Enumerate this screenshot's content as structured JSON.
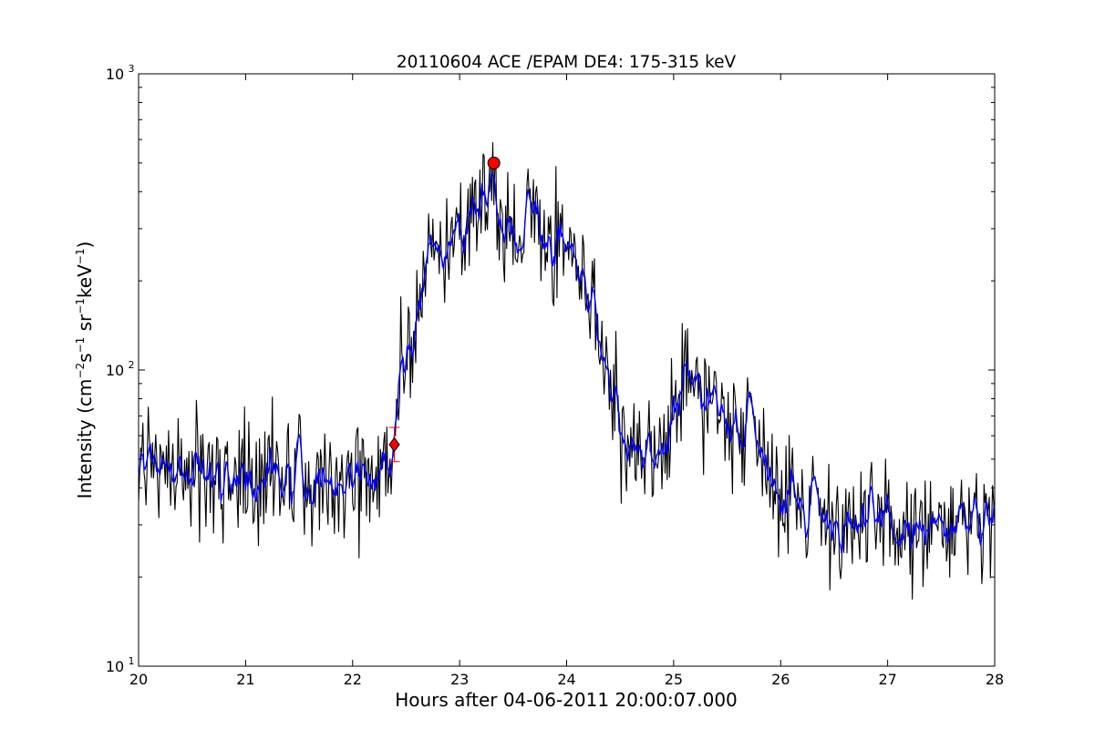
{
  "chart_data": {
    "type": "line",
    "title": "20110604 ACE /EPAM DE4: 175-315 keV",
    "xlabel": "Hours after 04-06-2011 20:00:07.000",
    "ylabel": {
      "prefix": "Intensity (cm",
      "sup1": "−2",
      "mid1": "s",
      "sup2": "−1",
      "mid2": "sr",
      "sup3": "−1",
      "mid3": "keV",
      "sup4": "−1",
      "suffix": ")"
    },
    "xlim": [
      20,
      28
    ],
    "ylim": [
      10,
      1000
    ],
    "y_scale": "log",
    "x_ticks": [
      "20",
      "21",
      "22",
      "23",
      "24",
      "25",
      "26",
      "27",
      "28"
    ],
    "y_ticks": [
      {
        "value": 10,
        "base": "10",
        "exp": "1"
      },
      {
        "value": 100,
        "base": "10",
        "exp": "2"
      },
      {
        "value": 1000,
        "base": "10",
        "exp": "3"
      }
    ],
    "series": [
      {
        "color": "#000000",
        "style": "raw",
        "profile": [
          [
            20.0,
            48
          ],
          [
            20.5,
            46
          ],
          [
            21.0,
            43
          ],
          [
            21.5,
            44
          ],
          [
            22.0,
            43
          ],
          [
            22.3,
            44
          ],
          [
            22.4,
            58
          ],
          [
            22.45,
            95
          ],
          [
            22.55,
            130
          ],
          [
            22.65,
            210
          ],
          [
            22.8,
            265
          ],
          [
            22.9,
            245
          ],
          [
            23.0,
            290
          ],
          [
            23.2,
            390
          ],
          [
            23.3,
            440
          ],
          [
            23.4,
            300
          ],
          [
            23.55,
            280
          ],
          [
            23.65,
            330
          ],
          [
            23.8,
            270
          ],
          [
            23.95,
            300
          ],
          [
            24.1,
            215
          ],
          [
            24.25,
            170
          ],
          [
            24.4,
            90
          ],
          [
            24.5,
            60
          ],
          [
            24.6,
            50
          ],
          [
            24.72,
            45
          ],
          [
            24.85,
            48
          ],
          [
            24.95,
            72
          ],
          [
            25.05,
            88
          ],
          [
            25.2,
            92
          ],
          [
            25.35,
            78
          ],
          [
            25.5,
            70
          ],
          [
            25.75,
            66
          ],
          [
            25.9,
            48
          ],
          [
            26.05,
            38
          ],
          [
            26.3,
            36
          ],
          [
            26.6,
            30
          ],
          [
            27.0,
            29
          ],
          [
            27.5,
            29
          ],
          [
            28.0,
            30
          ]
        ],
        "noise": 0.38
      },
      {
        "color": "#0000ff",
        "style": "smoothed",
        "noise": 0.16
      }
    ],
    "markers": [
      {
        "shape": "circle",
        "x": 23.32,
        "y": 500,
        "color": "#ff0000"
      },
      {
        "shape": "diamond",
        "x": 22.39,
        "y": 56,
        "color": "#ff0000",
        "errorbar": [
          49,
          64
        ]
      }
    ]
  }
}
